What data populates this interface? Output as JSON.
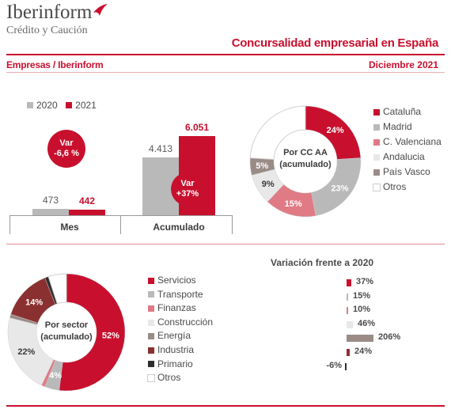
{
  "header": {
    "logo_main": "Iberinform",
    "logo_sub": "Crédito y Caución",
    "title": "Concursalidad empresarial en España",
    "subtitle_left": "Empresas / Iberinform",
    "subtitle_right": "Diciembre 2021"
  },
  "colors": {
    "red": "#c8102e",
    "grey": "#b9b9b9",
    "salmon": "#e07b86",
    "light_grey": "#e8e8e8",
    "taupe": "#9a8b87",
    "dark_red": "#8b3030",
    "black": "#2e2e2e",
    "white": "#ffffff"
  },
  "chart_data": [
    {
      "type": "bar",
      "legend": [
        "2020",
        "2021"
      ],
      "categories": [
        "Mes",
        "Acumulado"
      ],
      "series": [
        {
          "name": "2020",
          "values": [
            473,
            4413
          ],
          "labels": [
            "473",
            "4.413"
          ]
        },
        {
          "name": "2021",
          "values": [
            442,
            6051
          ],
          "labels": [
            "442",
            "6.051"
          ]
        }
      ],
      "annotations": [
        {
          "line1": "Var",
          "line2": "-6,6 %"
        },
        {
          "line1": "Var",
          "line2": "+37%"
        }
      ]
    },
    {
      "type": "pie",
      "center_label": [
        "Por CC AA",
        "(acumulado)"
      ],
      "slices": [
        {
          "name": "Cataluña",
          "value": 24,
          "label": "24%",
          "color": "#c8102e"
        },
        {
          "name": "Madrid",
          "value": 23,
          "label": "23%",
          "color": "#b9b9b9"
        },
        {
          "name": "C. Valenciana",
          "value": 15,
          "label": "15%",
          "color": "#e07b86"
        },
        {
          "name": "Andalucia",
          "value": 9,
          "label": "9%",
          "color": "#e8e8e8"
        },
        {
          "name": "País Vasco",
          "value": 5,
          "label": "5%",
          "color": "#9a8b87"
        },
        {
          "name": "Otros",
          "value": 24,
          "label": "",
          "color": "#ffffff"
        }
      ]
    },
    {
      "type": "pie",
      "center_label": [
        "Por sector",
        "(acumulado)"
      ],
      "slices": [
        {
          "name": "Servicios",
          "value": 52,
          "label": "52%",
          "color": "#c8102e"
        },
        {
          "name": "Transporte",
          "value": 4,
          "label": "4%",
          "color": "#b9b9b9"
        },
        {
          "name": "Finanzas",
          "value": 1,
          "label": "",
          "color": "#e07b86"
        },
        {
          "name": "Construcción",
          "value": 22,
          "label": "22%",
          "color": "#e8e8e8"
        },
        {
          "name": "Energía",
          "value": 1,
          "label": "",
          "color": "#9a8b87"
        },
        {
          "name": "Industria",
          "value": 14,
          "label": "14%",
          "color": "#8b3030"
        },
        {
          "name": "Primario",
          "value": 1,
          "label": "",
          "color": "#2e2e2e"
        },
        {
          "name": "Otros",
          "value": 5,
          "label": "",
          "color": "#ffffff"
        }
      ]
    },
    {
      "type": "bar",
      "orientation": "horizontal",
      "title": "Variación frente a 2020",
      "categories": [
        "Servicios",
        "Transporte",
        "Finanzas",
        "Construcción",
        "Energía",
        "Industria",
        "Primario"
      ],
      "values": [
        37,
        15,
        10,
        46,
        206,
        24,
        -6
      ],
      "labels": [
        "37%",
        "15%",
        "10%",
        "46%",
        "206%",
        "24%",
        "-6%"
      ],
      "colors": [
        "#c8102e",
        "#b9b9b9",
        "#e07b86",
        "#e8e8e8",
        "#9a8b87",
        "#8b3030",
        "#2e2e2e"
      ]
    }
  ]
}
